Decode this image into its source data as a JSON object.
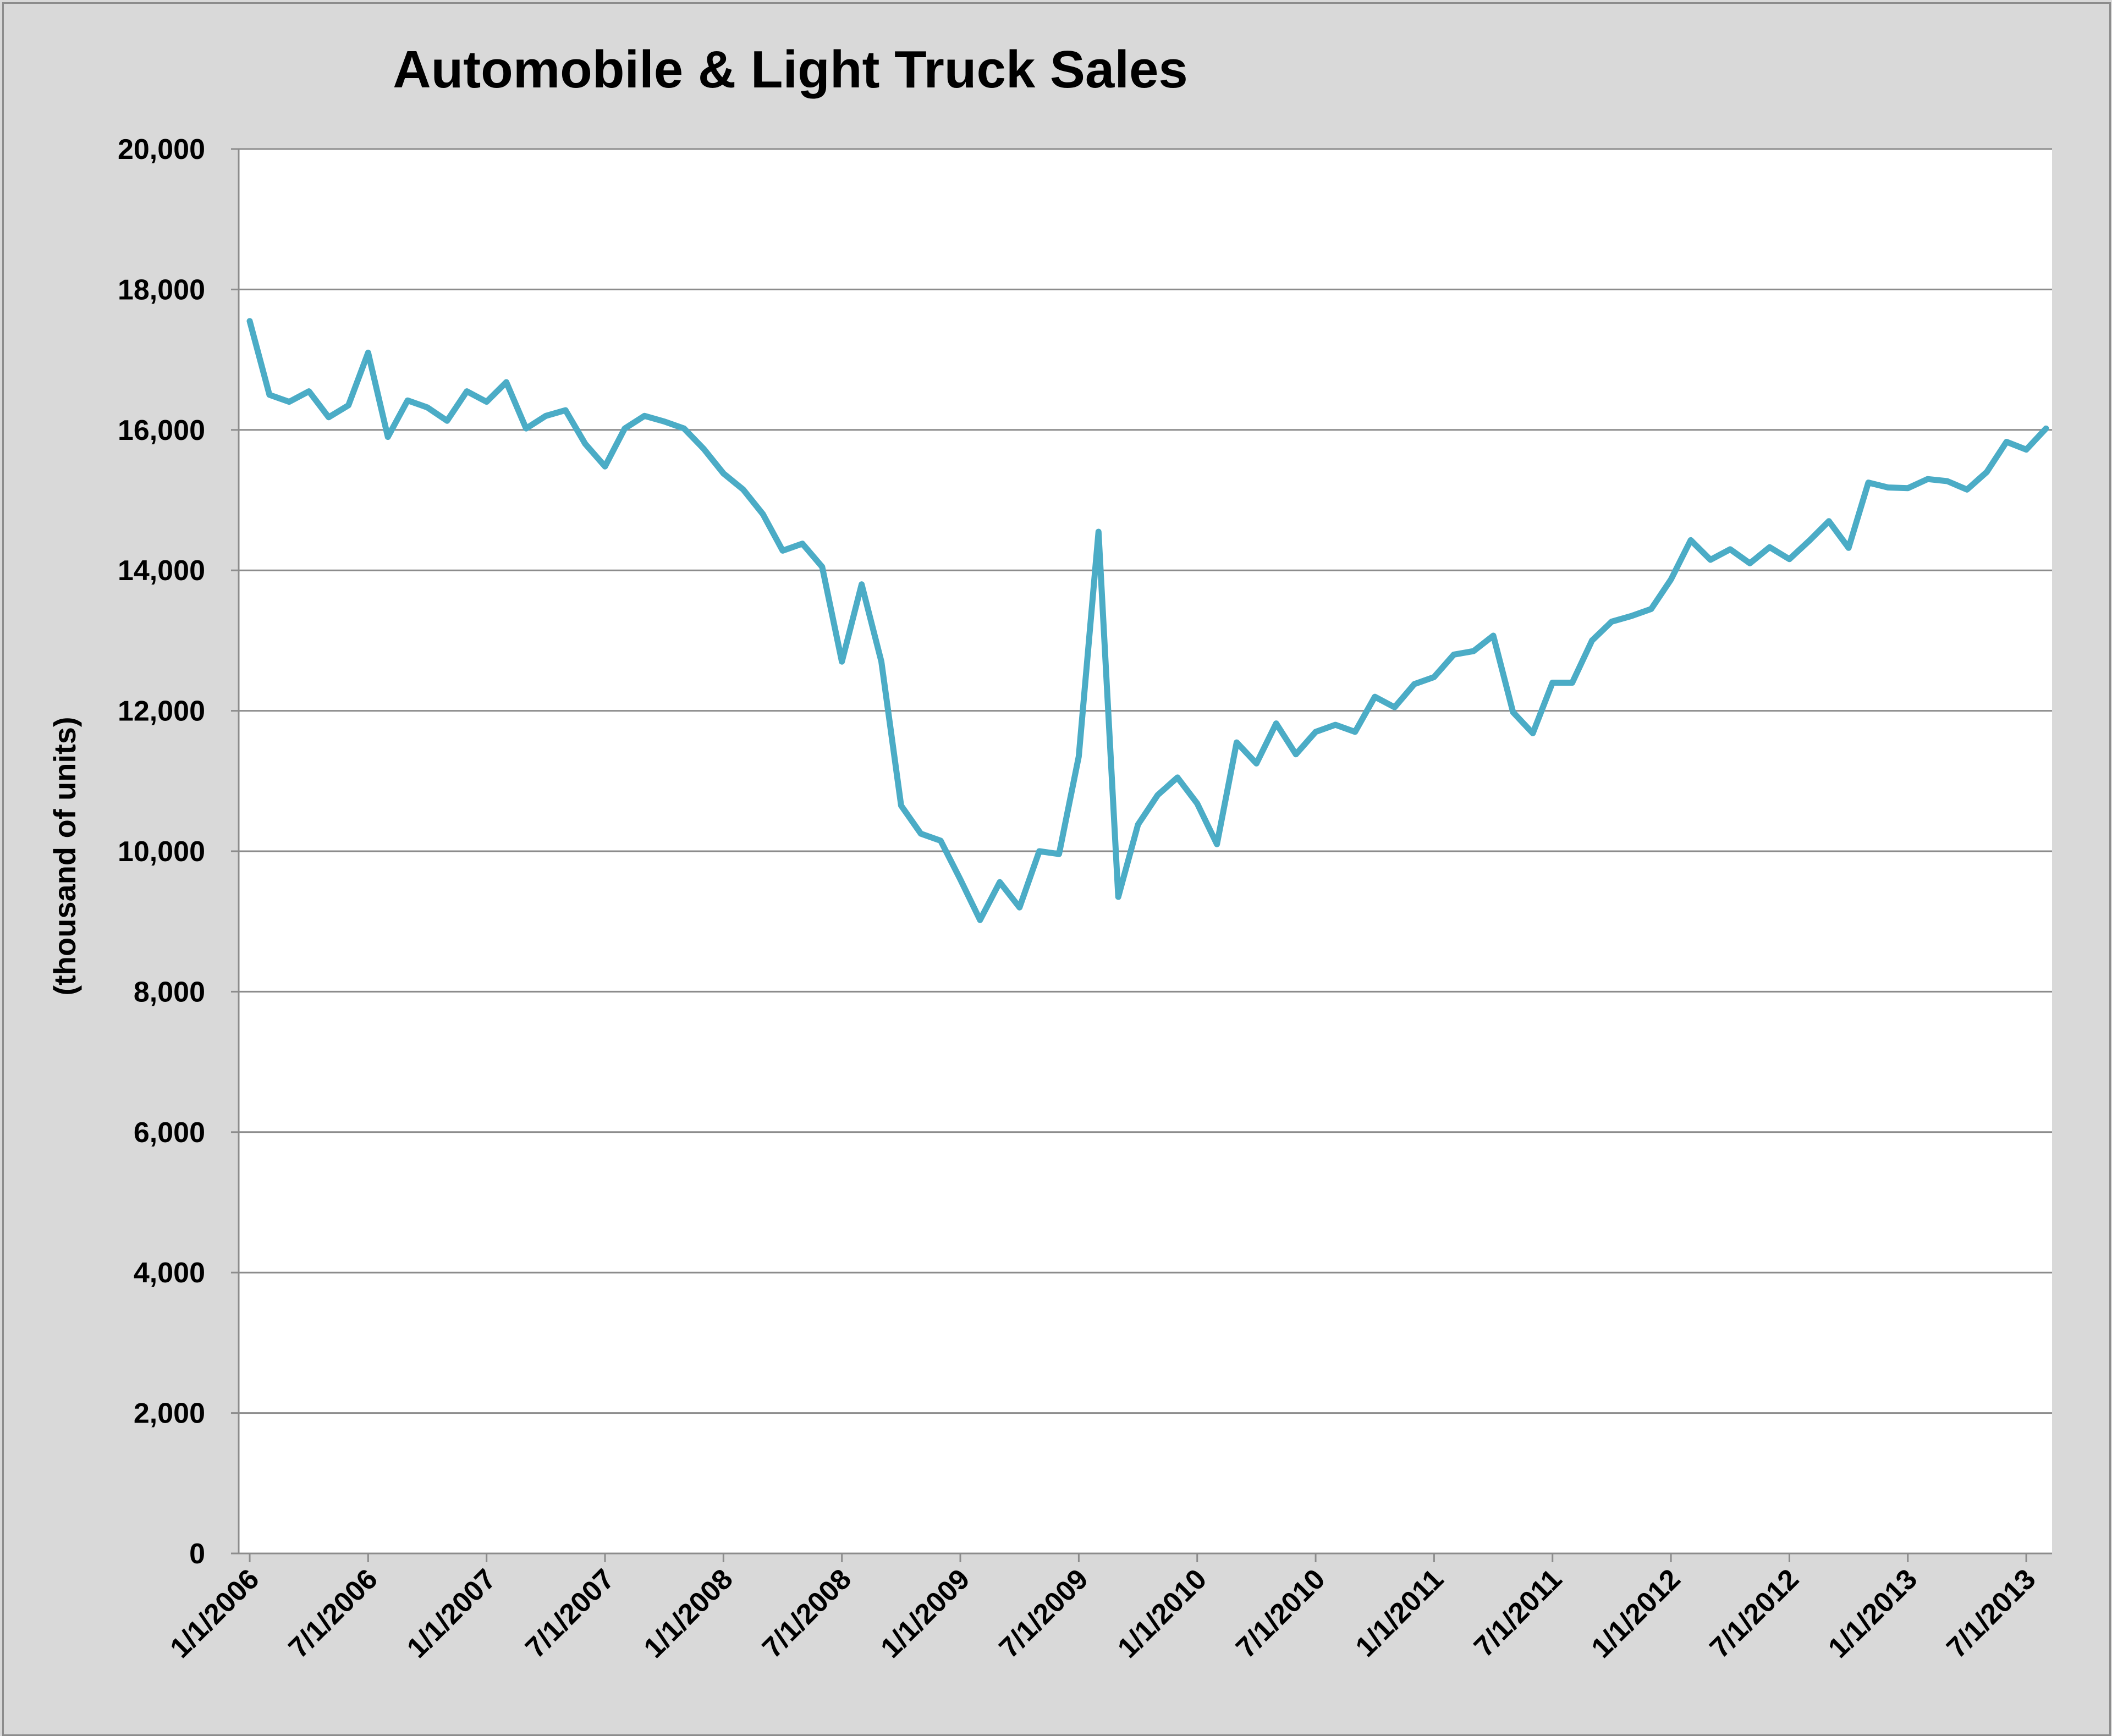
{
  "chart_data": {
    "type": "line",
    "title": "Automobile & Light Truck Sales",
    "xlabel": "",
    "ylabel": "(thousand of units)",
    "ylim": [
      0,
      20000
    ],
    "yticks": [
      0,
      2000,
      4000,
      6000,
      8000,
      10000,
      12000,
      14000,
      16000,
      18000,
      20000
    ],
    "ytick_labels": [
      "0",
      "2,000",
      "4,000",
      "6,000",
      "8,000",
      "10,000",
      "12,000",
      "14,000",
      "16,000",
      "18,000",
      "20,000"
    ],
    "xlim": [
      "1/1/2006",
      "8/1/2013"
    ],
    "xtick_labels": [
      "1/1/2006",
      "7/1/2006",
      "1/1/2007",
      "7/1/2007",
      "1/1/2008",
      "7/1/2008",
      "1/1/2009",
      "7/1/2009",
      "1/1/2010",
      "7/1/2010",
      "1/1/2011",
      "7/1/2011",
      "1/1/2012",
      "7/1/2012",
      "1/1/2013",
      "7/1/2013"
    ],
    "grid": true,
    "legend": "none",
    "line_color": "#4bacc6",
    "x": [
      "1/1/2006",
      "2/1/2006",
      "3/1/2006",
      "4/1/2006",
      "5/1/2006",
      "6/1/2006",
      "7/1/2006",
      "8/1/2006",
      "9/1/2006",
      "10/1/2006",
      "11/1/2006",
      "12/1/2006",
      "1/1/2007",
      "2/1/2007",
      "3/1/2007",
      "4/1/2007",
      "5/1/2007",
      "6/1/2007",
      "7/1/2007",
      "8/1/2007",
      "9/1/2007",
      "10/1/2007",
      "11/1/2007",
      "12/1/2007",
      "1/1/2008",
      "2/1/2008",
      "3/1/2008",
      "4/1/2008",
      "5/1/2008",
      "6/1/2008",
      "7/1/2008",
      "8/1/2008",
      "9/1/2008",
      "10/1/2008",
      "11/1/2008",
      "12/1/2008",
      "1/1/2009",
      "2/1/2009",
      "3/1/2009",
      "4/1/2009",
      "5/1/2009",
      "6/1/2009",
      "7/1/2009",
      "8/1/2009",
      "9/1/2009",
      "10/1/2009",
      "11/1/2009",
      "12/1/2009",
      "1/1/2010",
      "2/1/2010",
      "3/1/2010",
      "4/1/2010",
      "5/1/2010",
      "6/1/2010",
      "7/1/2010",
      "8/1/2010",
      "9/1/2010",
      "10/1/2010",
      "11/1/2010",
      "12/1/2010",
      "1/1/2011",
      "2/1/2011",
      "3/1/2011",
      "4/1/2011",
      "5/1/2011",
      "6/1/2011",
      "7/1/2011",
      "8/1/2011",
      "9/1/2011",
      "10/1/2011",
      "11/1/2011",
      "12/1/2011",
      "1/1/2012",
      "2/1/2012",
      "3/1/2012",
      "4/1/2012",
      "5/1/2012",
      "6/1/2012",
      "7/1/2012",
      "8/1/2012",
      "9/1/2012",
      "10/1/2012",
      "11/1/2012",
      "12/1/2012",
      "1/1/2013",
      "2/1/2013",
      "3/1/2013",
      "4/1/2013",
      "5/1/2013",
      "6/1/2013",
      "7/1/2013",
      "8/1/2013"
    ],
    "series": [
      {
        "values": [
          17550,
          16500,
          16400,
          16550,
          16180,
          16350,
          17100,
          15900,
          16420,
          16320,
          16130,
          16550,
          16400,
          16680,
          16020,
          16200,
          16280,
          15800,
          15480,
          16020,
          16200,
          16120,
          16020,
          15730,
          15380,
          15150,
          14800,
          14280,
          14380,
          14050,
          12700,
          13800,
          12700,
          10650,
          10250,
          10150,
          9600,
          9020,
          9560,
          9200,
          10000,
          9960,
          11350,
          14550,
          9350,
          10380,
          10800,
          11050,
          10680,
          10100,
          11550,
          11250,
          11820,
          11380,
          11700,
          11800,
          11700,
          12200,
          12050,
          12380,
          12480,
          12800,
          12850,
          13070,
          11980,
          11680,
          12400,
          12400,
          13000,
          13270,
          13350,
          13450,
          13870,
          14430,
          14150,
          14300,
          14100,
          14330,
          14160,
          14420,
          14700,
          14320,
          15250,
          15180,
          15170,
          15300,
          15270,
          15150,
          15400,
          15830,
          15720,
          16020
        ]
      }
    ]
  }
}
